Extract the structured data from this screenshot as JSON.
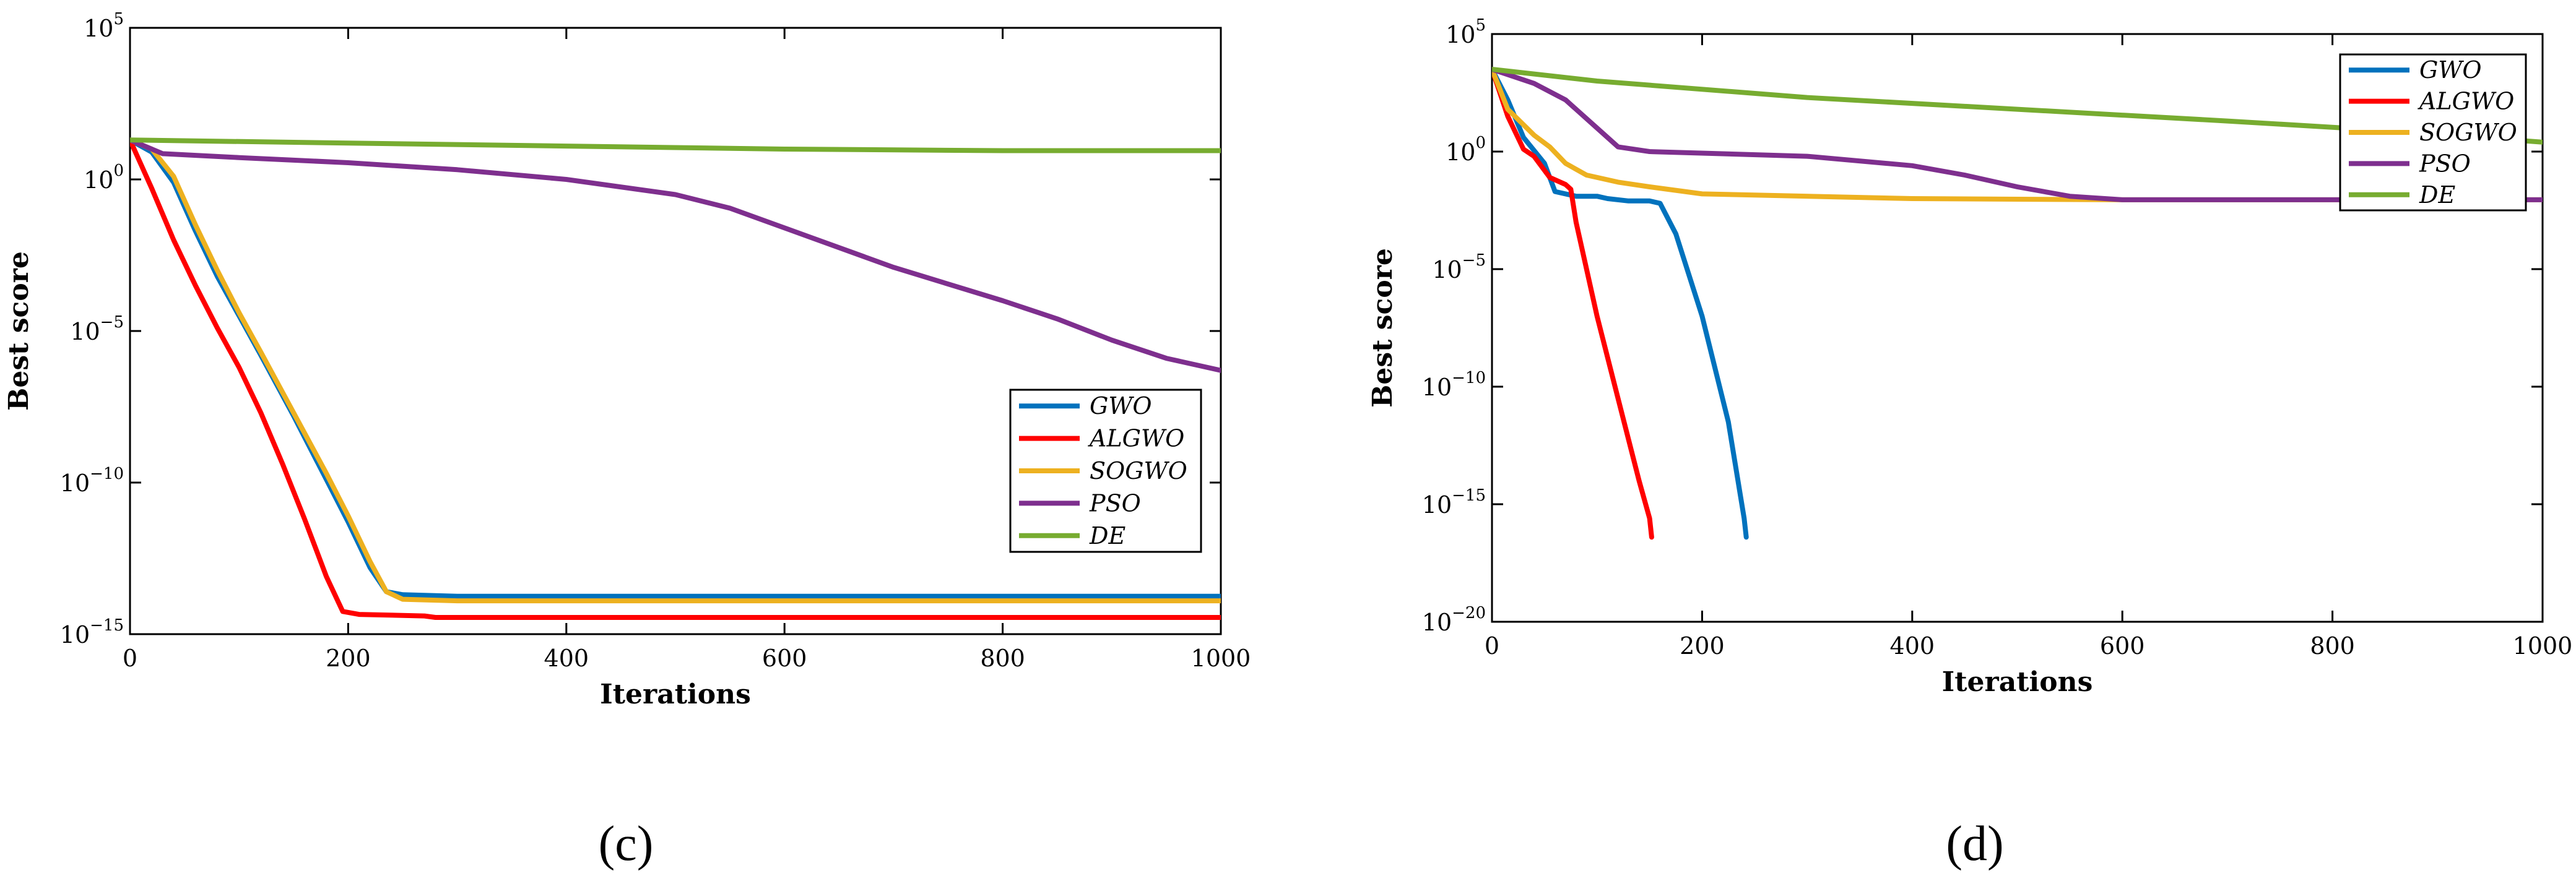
{
  "chart_data": [
    {
      "type": "line",
      "panel_label": "(c)",
      "xlabel": "Iterations",
      "ylabel": "Best score",
      "yscale": "log",
      "xlim": [
        0,
        1000
      ],
      "ylim_exp": [
        -15,
        5
      ],
      "xticks": [
        "0",
        "200",
        "400",
        "600",
        "800",
        "1000"
      ],
      "yticks": [
        {
          "exp": -15,
          "base": "10",
          "sup": "−15"
        },
        {
          "exp": -10,
          "base": "10",
          "sup": "−10"
        },
        {
          "exp": -5,
          "base": "10",
          "sup": "−5"
        },
        {
          "exp": 0,
          "base": "10",
          "sup": "0"
        },
        {
          "exp": 5,
          "base": "10",
          "sup": "5"
        }
      ],
      "legend": "right",
      "series": [
        {
          "name": "GWO",
          "color": "#0072BD",
          "points": [
            [
              0,
              1.3
            ],
            [
              20,
              0.9
            ],
            [
              40,
              -0.1
            ],
            [
              60,
              -1.7
            ],
            [
              80,
              -3.2
            ],
            [
              100,
              -4.5
            ],
            [
              120,
              -5.8
            ],
            [
              150,
              -7.8
            ],
            [
              180,
              -9.9
            ],
            [
              200,
              -11.3
            ],
            [
              220,
              -12.8
            ],
            [
              235,
              -13.6
            ],
            [
              250,
              -13.7
            ],
            [
              300,
              -13.75
            ],
            [
              1000,
              -13.75
            ]
          ]
        },
        {
          "name": "ALGWO",
          "color": "#FF0000",
          "points": [
            [
              0,
              1.3
            ],
            [
              20,
              -0.3
            ],
            [
              40,
              -2.0
            ],
            [
              60,
              -3.5
            ],
            [
              80,
              -4.9
            ],
            [
              100,
              -6.2
            ],
            [
              120,
              -7.7
            ],
            [
              140,
              -9.4
            ],
            [
              160,
              -11.2
            ],
            [
              180,
              -13.1
            ],
            [
              195,
              -14.25
            ],
            [
              210,
              -14.35
            ],
            [
              270,
              -14.4
            ],
            [
              280,
              -14.45
            ],
            [
              1000,
              -14.45
            ]
          ]
        },
        {
          "name": "SOGWO",
          "color": "#EDB120",
          "points": [
            [
              0,
              1.3
            ],
            [
              20,
              1.0
            ],
            [
              40,
              0.1
            ],
            [
              60,
              -1.5
            ],
            [
              80,
              -3.0
            ],
            [
              100,
              -4.4
            ],
            [
              120,
              -5.7
            ],
            [
              150,
              -7.7
            ],
            [
              180,
              -9.7
            ],
            [
              200,
              -11.1
            ],
            [
              220,
              -12.6
            ],
            [
              235,
              -13.6
            ],
            [
              250,
              -13.85
            ],
            [
              300,
              -13.9
            ],
            [
              1000,
              -13.9
            ]
          ]
        },
        {
          "name": "PSO",
          "color": "#7E2F8E",
          "points": [
            [
              0,
              1.3
            ],
            [
              30,
              0.85
            ],
            [
              100,
              0.72
            ],
            [
              200,
              0.55
            ],
            [
              300,
              0.32
            ],
            [
              400,
              0.0
            ],
            [
              500,
              -0.5
            ],
            [
              550,
              -0.95
            ],
            [
              600,
              -1.6
            ],
            [
              700,
              -2.9
            ],
            [
              800,
              -4.0
            ],
            [
              850,
              -4.6
            ],
            [
              900,
              -5.3
            ],
            [
              950,
              -5.9
            ],
            [
              1000,
              -6.3
            ]
          ]
        },
        {
          "name": "DE",
          "color": "#77AC30",
          "points": [
            [
              0,
              1.3
            ],
            [
              200,
              1.2
            ],
            [
              400,
              1.1
            ],
            [
              600,
              1.0
            ],
            [
              800,
              0.95
            ],
            [
              1000,
              0.95
            ]
          ]
        }
      ]
    },
    {
      "type": "line",
      "panel_label": "(d)",
      "xlabel": "Iterations",
      "ylabel": "Best score",
      "yscale": "log",
      "xlim": [
        0,
        1000
      ],
      "ylim_exp": [
        -20,
        5
      ],
      "xticks": [
        "0",
        "200",
        "400",
        "600",
        "800",
        "1000"
      ],
      "yticks": [
        {
          "exp": -20,
          "base": "10",
          "sup": "−20"
        },
        {
          "exp": -15,
          "base": "10",
          "sup": "−15"
        },
        {
          "exp": -10,
          "base": "10",
          "sup": "−10"
        },
        {
          "exp": -5,
          "base": "10",
          "sup": "−5"
        },
        {
          "exp": 0,
          "base": "10",
          "sup": "0"
        },
        {
          "exp": 5,
          "base": "10",
          "sup": "5"
        }
      ],
      "legend": "top-right",
      "series": [
        {
          "name": "GWO",
          "color": "#0072BD",
          "points": [
            [
              0,
              3.5
            ],
            [
              15,
              2.2
            ],
            [
              30,
              0.6
            ],
            [
              50,
              -0.5
            ],
            [
              60,
              -1.7
            ],
            [
              80,
              -1.9
            ],
            [
              100,
              -1.9
            ],
            [
              110,
              -2.0
            ],
            [
              130,
              -2.1
            ],
            [
              150,
              -2.1
            ],
            [
              160,
              -2.2
            ],
            [
              175,
              -3.5
            ],
            [
              200,
              -7.0
            ],
            [
              225,
              -11.5
            ],
            [
              240,
              -15.6
            ],
            [
              242,
              -16.4
            ]
          ]
        },
        {
          "name": "ALGWO",
          "color": "#FF0000",
          "points": [
            [
              0,
              3.5
            ],
            [
              15,
              1.5
            ],
            [
              30,
              0.1
            ],
            [
              40,
              -0.2
            ],
            [
              55,
              -1.1
            ],
            [
              70,
              -1.4
            ],
            [
              75,
              -1.6
            ],
            [
              80,
              -3.0
            ],
            [
              100,
              -7.0
            ],
            [
              120,
              -10.5
            ],
            [
              140,
              -14.0
            ],
            [
              150,
              -15.6
            ],
            [
              152,
              -16.4
            ]
          ]
        },
        {
          "name": "SOGWO",
          "color": "#EDB120",
          "points": [
            [
              0,
              3.5
            ],
            [
              15,
              1.8
            ],
            [
              40,
              0.7
            ],
            [
              55,
              0.2
            ],
            [
              70,
              -0.5
            ],
            [
              90,
              -1.0
            ],
            [
              120,
              -1.3
            ],
            [
              150,
              -1.5
            ],
            [
              200,
              -1.8
            ],
            [
              400,
              -2.0
            ],
            [
              600,
              -2.05
            ],
            [
              1000,
              -2.05
            ]
          ]
        },
        {
          "name": "PSO",
          "color": "#7E2F8E",
          "points": [
            [
              0,
              3.5
            ],
            [
              40,
              2.9
            ],
            [
              70,
              2.2
            ],
            [
              100,
              1.0
            ],
            [
              120,
              0.2
            ],
            [
              150,
              0.0
            ],
            [
              300,
              -0.2
            ],
            [
              400,
              -0.6
            ],
            [
              450,
              -1.0
            ],
            [
              500,
              -1.5
            ],
            [
              550,
              -1.9
            ],
            [
              600,
              -2.05
            ],
            [
              1000,
              -2.05
            ]
          ]
        },
        {
          "name": "DE",
          "color": "#77AC30",
          "points": [
            [
              0,
              3.5
            ],
            [
              100,
              3.0
            ],
            [
              300,
              2.3
            ],
            [
              500,
              1.8
            ],
            [
              700,
              1.3
            ],
            [
              850,
              0.9
            ],
            [
              1000,
              0.4
            ]
          ]
        }
      ]
    }
  ]
}
